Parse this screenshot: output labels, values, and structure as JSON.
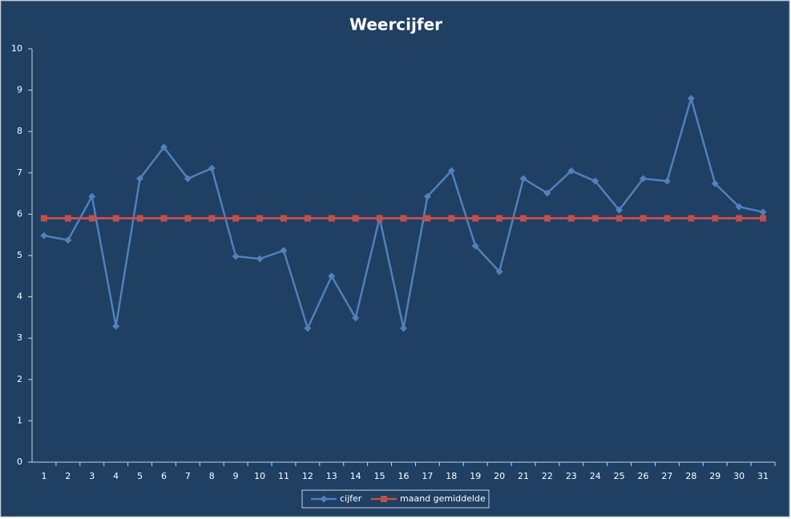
{
  "chart_data": {
    "type": "line",
    "title": "Weercijfer",
    "categories": [
      "1",
      "2",
      "3",
      "4",
      "5",
      "6",
      "7",
      "8",
      "9",
      "10",
      "11",
      "12",
      "13",
      "14",
      "15",
      "16",
      "17",
      "18",
      "19",
      "20",
      "21",
      "22",
      "23",
      "24",
      "25",
      "26",
      "27",
      "28",
      "29",
      "30",
      "31"
    ],
    "series": [
      {
        "name": "cijfer",
        "color": "#4f81bd",
        "marker": "diamond",
        "values": [
          5.48,
          5.37,
          6.43,
          3.29,
          6.86,
          7.62,
          6.86,
          7.11,
          4.98,
          4.92,
          5.12,
          3.24,
          4.5,
          3.49,
          5.91,
          3.24,
          6.43,
          7.05,
          5.23,
          4.61,
          6.86,
          6.51,
          7.05,
          6.8,
          6.1,
          6.86,
          6.8,
          8.8,
          6.74,
          6.18,
          6.05
        ]
      },
      {
        "name": "maand gemiddelde",
        "color": "#c0504d",
        "marker": "square",
        "values": [
          5.9,
          5.9,
          5.9,
          5.9,
          5.9,
          5.9,
          5.9,
          5.9,
          5.9,
          5.9,
          5.9,
          5.9,
          5.9,
          5.9,
          5.9,
          5.9,
          5.9,
          5.9,
          5.9,
          5.9,
          5.9,
          5.9,
          5.9,
          5.9,
          5.9,
          5.9,
          5.9,
          5.9,
          5.9,
          5.9,
          5.9
        ]
      }
    ],
    "ylim": [
      0,
      10
    ],
    "yticks": [
      0,
      1,
      2,
      3,
      4,
      5,
      6,
      7,
      8,
      9,
      10
    ],
    "grid": false,
    "legend": "bottom"
  }
}
